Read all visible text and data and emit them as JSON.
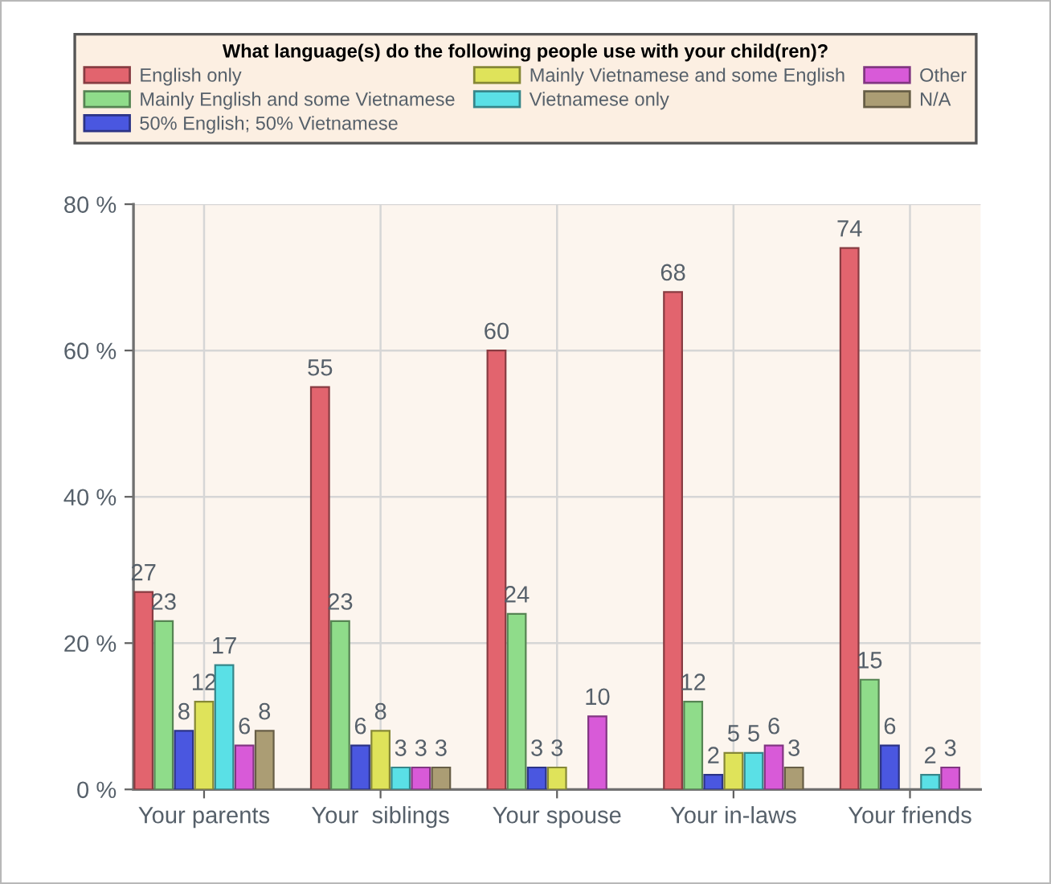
{
  "chart_data": {
    "type": "bar",
    "legend_title": "What language(s) do the following people use with your child(ren)?",
    "categories": [
      "Your parents",
      "Your  siblings",
      "Your spouse",
      "Your in-laws",
      "Your friends"
    ],
    "series": [
      {
        "name": "English only",
        "color": "#e2646e",
        "values": [
          27,
          55,
          60,
          68,
          74
        ]
      },
      {
        "name": "Mainly English and some Vietnamese",
        "color": "#8fdc8a",
        "values": [
          23,
          23,
          24,
          12,
          15
        ]
      },
      {
        "name": "50% English; 50% Vietnamese",
        "color": "#4a57e0",
        "values": [
          8,
          6,
          3,
          2,
          6
        ]
      },
      {
        "name": "Mainly Vietnamese and some English",
        "color": "#dfe35a",
        "values": [
          12,
          8,
          3,
          5,
          null
        ]
      },
      {
        "name": "Vietnamese only",
        "color": "#5ae0e6",
        "values": [
          17,
          3,
          null,
          5,
          2
        ]
      },
      {
        "name": "Other",
        "color": "#d85ad8",
        "values": [
          6,
          3,
          10,
          6,
          3
        ]
      },
      {
        "name": "N/A",
        "color": "#ab9d74",
        "values": [
          8,
          3,
          null,
          3,
          null
        ]
      }
    ],
    "ylim": [
      0,
      80
    ],
    "yticks": [
      {
        "value": 0,
        "label": "0 %"
      },
      {
        "value": 20,
        "label": "20 %"
      },
      {
        "value": 40,
        "label": "40 %"
      },
      {
        "value": 60,
        "label": "60 %"
      },
      {
        "value": 80,
        "label": "80 %"
      }
    ],
    "grid": true,
    "legend": "top",
    "data_labels": true
  }
}
